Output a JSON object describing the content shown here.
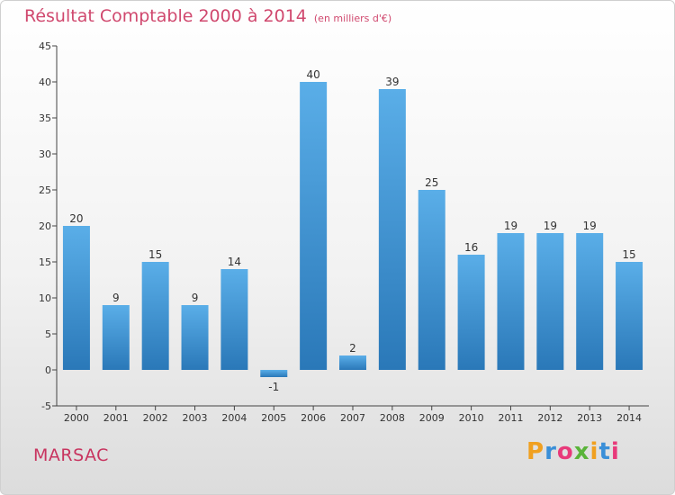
{
  "chart_data": {
    "type": "bar",
    "title": "Résultat Comptable 2000 à 2014",
    "subtitle": "(en milliers d'€)",
    "categories": [
      "2000",
      "2001",
      "2002",
      "2003",
      "2004",
      "2005",
      "2006",
      "2007",
      "2008",
      "2009",
      "2010",
      "2011",
      "2012",
      "2013",
      "2014"
    ],
    "values": [
      20,
      9,
      15,
      9,
      14,
      -1,
      40,
      2,
      39,
      25,
      16,
      19,
      19,
      19,
      15
    ],
    "data_labels": [
      "20",
      "9",
      "15",
      "9",
      "14",
      "-1",
      "40",
      "2",
      "39",
      "25",
      "16",
      "19",
      "19",
      "19",
      "15"
    ],
    "ylim": [
      -5,
      45
    ],
    "yticks": [
      -5,
      0,
      5,
      10,
      15,
      20,
      25,
      30,
      35,
      40,
      45
    ],
    "ytick_labels": [
      "-5",
      "0",
      "5",
      "10",
      "15",
      "20",
      "25",
      "30",
      "35",
      "40",
      "45"
    ],
    "xlabel": "",
    "ylabel": "",
    "grid": false,
    "bar_color_top": "#5aaee8",
    "bar_color_bottom": "#2a78b8"
  },
  "footer": {
    "town": "MARSAC",
    "logo_letters": [
      "P",
      "r",
      "o",
      "x",
      "i",
      "t",
      "i"
    ],
    "logo_colors": [
      "#f0a020",
      "#3a8fd8",
      "#e83a7a",
      "#5ab43a",
      "#f0a020",
      "#3a8fd8",
      "#e83a7a"
    ]
  },
  "colors": {
    "title": "#d0486e",
    "town": "#c8345f",
    "axis": "#444444"
  }
}
